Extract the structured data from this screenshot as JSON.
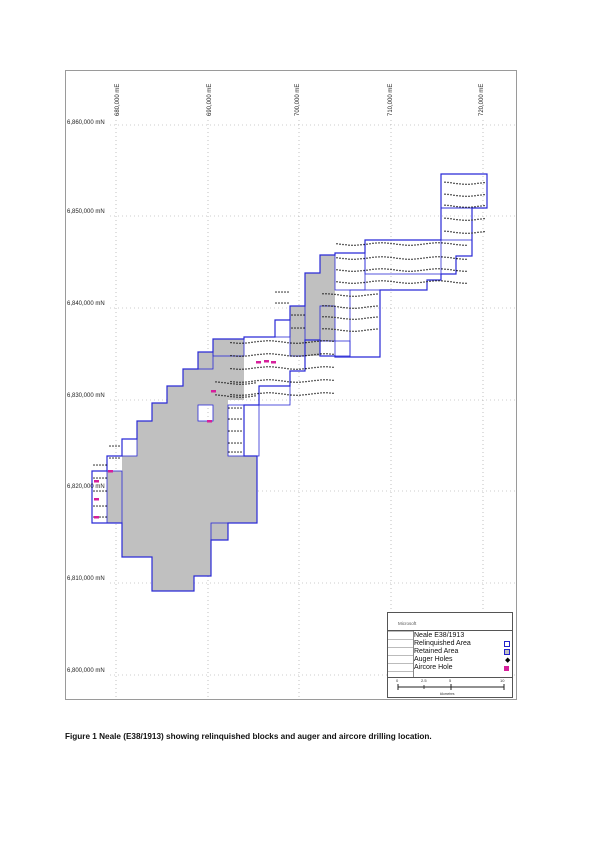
{
  "figure": {
    "caption": "Figure 1 Neale (E38/1913) showing relinquished blocks and auger and aircore drilling location."
  },
  "map": {
    "easting_labels": [
      "680,000 mE",
      "690,000 mE",
      "700,000 mE",
      "710,000 mE",
      "720,000 mE"
    ],
    "northing_labels": [
      "6,860,000 mN",
      "6,850,000 mN",
      "6,840,000 mN",
      "6,830,000 mN",
      "6,820,000 mN",
      "6,810,000 mN",
      "6,800,000 mN"
    ],
    "colors": {
      "retained_fill": "#c0c0c0",
      "boundary": "#2a2ad6",
      "auger": "#111111",
      "aircore": "#d61f9b",
      "grid": "#9a9a9a"
    }
  },
  "legend": {
    "company": "Microsoft",
    "title": "Neale E38/1913",
    "items": [
      {
        "label": "Relinquished Area",
        "icon": "outline-box-icon"
      },
      {
        "label": "Retained  Area",
        "icon": "grey-box-icon"
      },
      {
        "label": "Auger Holes",
        "icon": "diamond-icon"
      },
      {
        "label": "Aircore Hole",
        "icon": "magenta-square-icon"
      }
    ],
    "scale_labels": [
      "0",
      "2.5",
      "5",
      "10"
    ],
    "scale_unit": "kilometres"
  }
}
